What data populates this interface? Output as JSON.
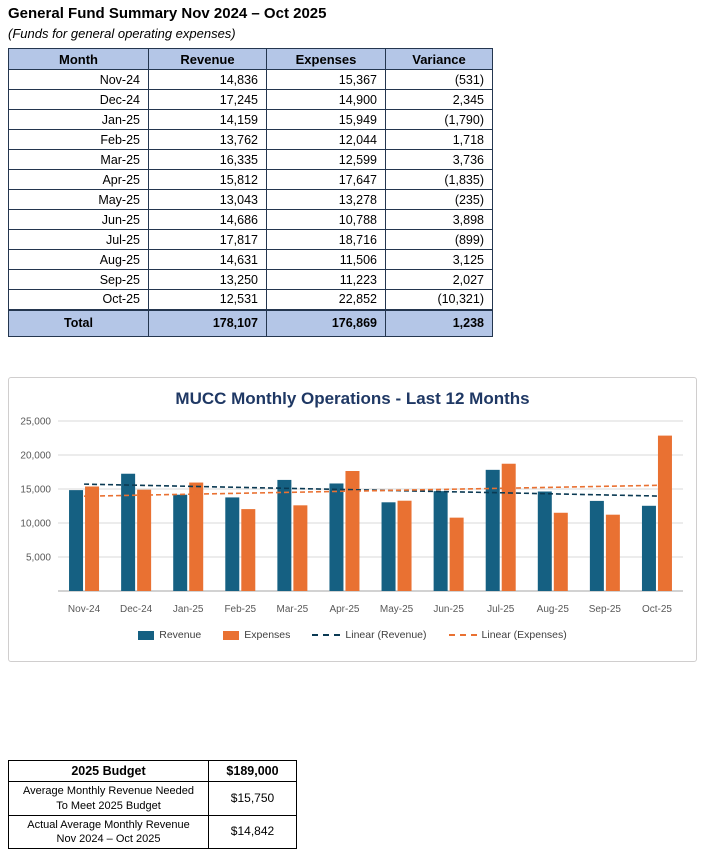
{
  "page": {
    "title": "General Fund Summary Nov 2024 – Oct 2025",
    "subtitle": "(Funds for general operating expenses)"
  },
  "table": {
    "headers": [
      "Month",
      "Revenue",
      "Expenses",
      "Variance"
    ],
    "rows": [
      [
        "Nov-24",
        "14,836",
        "15,367",
        "(531)"
      ],
      [
        "Dec-24",
        "17,245",
        "14,900",
        "2,345"
      ],
      [
        "Jan-25",
        "14,159",
        "15,949",
        "(1,790)"
      ],
      [
        "Feb-25",
        "13,762",
        "12,044",
        "1,718"
      ],
      [
        "Mar-25",
        "16,335",
        "12,599",
        "3,736"
      ],
      [
        "Apr-25",
        "15,812",
        "17,647",
        "(1,835)"
      ],
      [
        "May-25",
        "13,043",
        "13,278",
        "(235)"
      ],
      [
        "Jun-25",
        "14,686",
        "10,788",
        "3,898"
      ],
      [
        "Jul-25",
        "17,817",
        "18,716",
        "(899)"
      ],
      [
        "Aug-25",
        "14,631",
        "11,506",
        "3,125"
      ],
      [
        "Sep-25",
        "13,250",
        "11,223",
        "2,027"
      ],
      [
        "Oct-25",
        "12,531",
        "22,852",
        "(10,321)"
      ]
    ],
    "total": [
      "Total",
      "178,107",
      "176,869",
      "1,238"
    ]
  },
  "chart_data": {
    "type": "bar",
    "title": "MUCC Monthly Operations - Last 12 Months",
    "categories": [
      "Nov-24",
      "Dec-24",
      "Jan-25",
      "Feb-25",
      "Mar-25",
      "Apr-25",
      "May-25",
      "Jun-25",
      "Jul-25",
      "Aug-25",
      "Sep-25",
      "Oct-25"
    ],
    "series": [
      {
        "name": "Revenue",
        "color": "#156082",
        "values": [
          14836,
          17245,
          14159,
          13762,
          16335,
          15812,
          13043,
          14686,
          17817,
          14631,
          13250,
          12531
        ]
      },
      {
        "name": "Expenses",
        "color": "#E97132",
        "values": [
          15367,
          14900,
          15949,
          12044,
          12599,
          17647,
          13278,
          10788,
          18716,
          11506,
          11223,
          22852
        ]
      }
    ],
    "trendlines": [
      {
        "name": "Linear (Revenue)",
        "color": "#0B3A53"
      },
      {
        "name": "Linear (Expenses)",
        "color": "#E97132"
      }
    ],
    "ylim": [
      0,
      25000
    ],
    "yticks": [
      {
        "value": 5000,
        "label": "5,000"
      },
      {
        "value": 10000,
        "label": "10,000"
      },
      {
        "value": 15000,
        "label": "15,000"
      },
      {
        "value": 20000,
        "label": "20,000"
      },
      {
        "value": 25000,
        "label": "25,000"
      }
    ],
    "legend": [
      {
        "label": "Revenue",
        "type": "swatch",
        "color": "#156082"
      },
      {
        "label": "Expenses",
        "type": "swatch",
        "color": "#E97132"
      },
      {
        "label": "Linear (Revenue)",
        "type": "dash",
        "color": "#0B3A53"
      },
      {
        "label": "Linear (Expenses)",
        "type": "dash",
        "color": "#E97132"
      }
    ],
    "grid": true,
    "legend_position": "bottom"
  },
  "budget_table": {
    "rows": [
      {
        "label_lines": [
          "2025 Budget"
        ],
        "value": "$189,000",
        "bold": true
      },
      {
        "label_lines": [
          "Average Monthly Revenue Needed",
          "To Meet 2025 Budget"
        ],
        "value": "$15,750",
        "bold": false
      },
      {
        "label_lines": [
          "Actual Average Monthly Revenue",
          "Nov 2024 – Oct 2025"
        ],
        "value": "$14,842",
        "bold": false
      }
    ]
  }
}
